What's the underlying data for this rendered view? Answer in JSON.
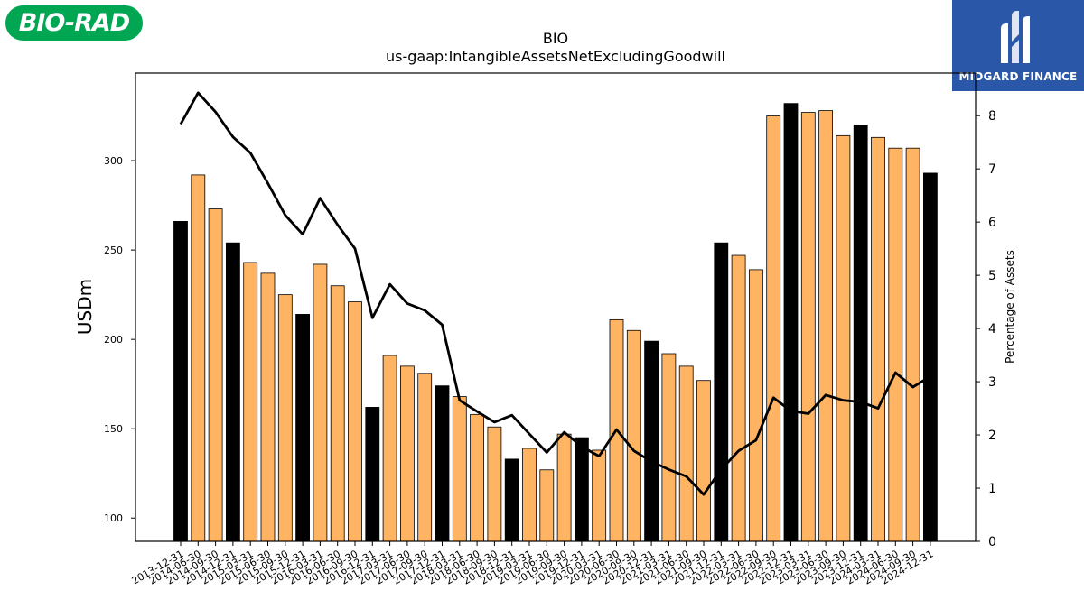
{
  "logo": {
    "text": "BIO-RAD",
    "color": "#00a651"
  },
  "brand": {
    "name": "MIDGARD FINANCE",
    "color": "#2b57a8",
    "icon": "midgard-logo-icon"
  },
  "chart_data": {
    "type": "bar",
    "title": "BIO",
    "subtitle": "us-gaap:IntangibleAssetsNetExcludingGoodwill",
    "ylabel": "USDm",
    "y2label": "Percentage of Assets",
    "ylim": [
      87,
      349
    ],
    "y2lim": [
      0,
      8.8
    ],
    "yticks": [
      100,
      150,
      200,
      250,
      300
    ],
    "y2ticks": [
      0,
      1,
      2,
      3,
      4,
      5,
      6,
      7,
      8
    ],
    "categories": [
      "2013-12-31",
      "2014-06-30",
      "2014-09-30",
      "2014-12-31",
      "2015-03-31",
      "2015-06-30",
      "2015-09-30",
      "2015-12-31",
      "2016-03-31",
      "2016-06-30",
      "2016-09-30",
      "2016-12-31",
      "2017-03-31",
      "2017-06-30",
      "2017-09-30",
      "2017-12-31",
      "2018-03-31",
      "2018-06-30",
      "2018-09-30",
      "2018-12-31",
      "2019-03-31",
      "2019-06-30",
      "2019-09-30",
      "2019-12-31",
      "2020-03-31",
      "2020-06-30",
      "2020-09-30",
      "2020-12-31",
      "2021-03-31",
      "2021-06-30",
      "2021-09-30",
      "2021-12-31",
      "2022-03-31",
      "2022-06-30",
      "2022-09-30",
      "2022-12-31",
      "2023-03-31",
      "2023-06-30",
      "2023-09-30",
      "2023-12-31",
      "2024-03-31",
      "2024-06-30",
      "2024-09-30",
      "2024-12-31"
    ],
    "series": [
      {
        "values": [
          266,
          292,
          273,
          254,
          243,
          237,
          225,
          214,
          242,
          230,
          221,
          162,
          191,
          185,
          181,
          174,
          168,
          158,
          151,
          133,
          139,
          127,
          147,
          145,
          138,
          211,
          205,
          199,
          192,
          185,
          177,
          254,
          247,
          239,
          325,
          332,
          327,
          328,
          314,
          320,
          313,
          307,
          307,
          293
        ]
      },
      {
        "values": [
          7.84,
          8.43,
          8.07,
          7.6,
          7.3,
          6.73,
          6.13,
          5.77,
          6.45,
          5.95,
          5.5,
          4.2,
          4.83,
          4.47,
          4.34,
          4.07,
          2.65,
          2.44,
          2.24,
          2.37,
          2.02,
          1.67,
          2.05,
          1.78,
          1.6,
          2.1,
          1.7,
          1.5,
          1.35,
          1.22,
          0.88,
          1.35,
          1.7,
          1.9,
          2.7,
          2.45,
          2.4,
          2.75,
          2.65,
          2.62,
          2.5,
          3.17,
          2.9,
          3.1
        ]
      }
    ],
    "year_end_fill": "#000000",
    "quarter_fill": "#feb462",
    "line_color": "#000000"
  }
}
